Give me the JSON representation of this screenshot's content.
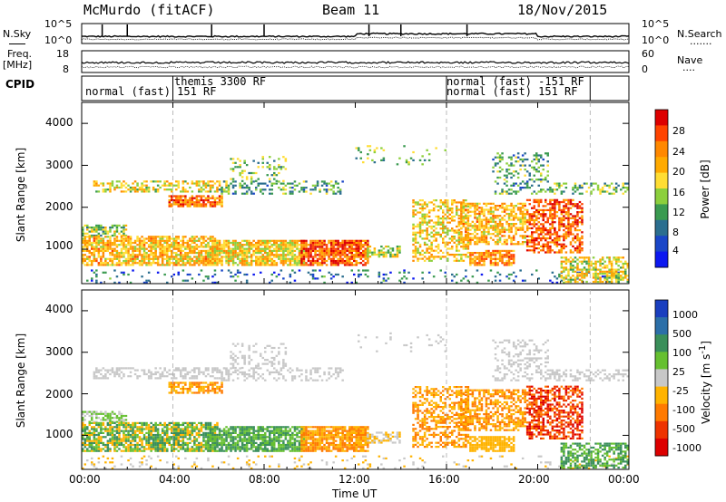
{
  "header": {
    "station": "McMurdo (fitACF)",
    "beam": "Beam 11",
    "date": "18/Nov/2015"
  },
  "aux": {
    "nsky_label": "N.Sky",
    "nsearch_label": "N.Search",
    "nsearch_dots": "·······",
    "freq_label": "Freq.",
    "freq_unit": "[MHz]",
    "nave_label": "Nave",
    "nave_dots": "····",
    "cpid_label": "CPID",
    "noise_ticks": [
      "10^5",
      "10^0"
    ],
    "freq_ticks": [
      "18",
      "8"
    ],
    "nave_ticks": [
      "60",
      "0"
    ]
  },
  "cpid": {
    "segments": [
      {
        "text": "normal (fast) 151 RF",
        "row": 2,
        "from": 0,
        "to": 4.0
      },
      {
        "text": "themis 3300 RF",
        "row": 1,
        "from": 4.0,
        "to": 16.0
      },
      {
        "text": "normal (fast) -151 RF",
        "row": 1,
        "from": 16.0,
        "to": 22.3
      },
      {
        "text": "normal (fast) 151 RF",
        "row": 2,
        "from": 16.0,
        "to": 22.3
      }
    ]
  },
  "chart_data": [
    {
      "type": "heatmap",
      "panel": "power",
      "xlabel": "",
      "ylabel": "Slant Range [km]",
      "xlim": [
        0,
        24
      ],
      "ylim": [
        180,
        4500
      ],
      "yticks": [
        1000,
        2000,
        3000,
        4000
      ],
      "colorbar": {
        "label": "Power [dB]",
        "ticks": [
          "28",
          "24",
          "20",
          "16",
          "12",
          "8",
          "4"
        ],
        "colors": [
          "#dd0000",
          "#ff4400",
          "#ff8800",
          "#ffaa00",
          "#ffdd33",
          "#8ccf3c",
          "#3a9a50",
          "#2b6e8f",
          "#1a46c8",
          "#0c18f0"
        ]
      }
    },
    {
      "type": "heatmap",
      "panel": "velocity",
      "xlabel": "Time UT",
      "ylabel": "Slant Range [km]",
      "xlim": [
        0,
        24
      ],
      "ylim": [
        180,
        4500
      ],
      "yticks": [
        1000,
        2000,
        3000,
        4000
      ],
      "xtick_labels": [
        "00:00",
        "04:00",
        "08:00",
        "12:00",
        "16:00",
        "20:00",
        "00:00"
      ],
      "colorbar": {
        "label": "Velocity [m s-1]",
        "ticks": [
          "1000",
          "500",
          "100",
          "25",
          "-25",
          "-100",
          "-500",
          "-1000"
        ],
        "colors": [
          "#1a3fbf",
          "#2c6fa8",
          "#3a8f5a",
          "#66c030",
          "#c8c8c8",
          "#ffb300",
          "#ff7a00",
          "#ee3300",
          "#dd0000"
        ]
      }
    }
  ]
}
